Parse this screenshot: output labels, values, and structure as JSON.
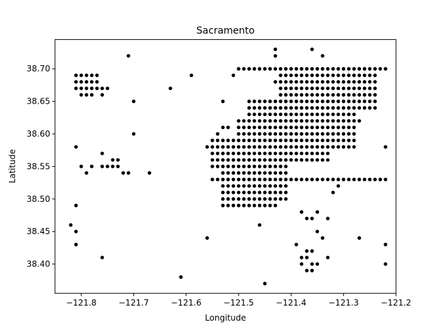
{
  "chart_data": {
    "type": "scatter",
    "title": "Sacramento",
    "xlabel": "Longitude",
    "ylabel": "Latitude",
    "xlim": [
      -121.85,
      -121.2
    ],
    "ylim": [
      38.355,
      38.745
    ],
    "xticks": [
      -121.8,
      -121.7,
      -121.6,
      -121.5,
      -121.4,
      -121.3,
      -121.2
    ],
    "xtick_labels": [
      "−121.8",
      "−121.7",
      "−121.6",
      "−121.5",
      "−121.4",
      "−121.3",
      "−121.2"
    ],
    "yticks": [
      38.4,
      38.45,
      38.5,
      38.55,
      38.6,
      38.65,
      38.7
    ],
    "ytick_labels": [
      "38.40",
      "38.45",
      "38.50",
      "38.55",
      "38.60",
      "38.65",
      "38.70"
    ],
    "grid": false,
    "marker_color": "#000000",
    "x": [
      -121.81,
      -121.8,
      -121.79,
      -121.78,
      -121.77,
      -121.81,
      -121.8,
      -121.79,
      -121.78,
      -121.77,
      -121.81,
      -121.8,
      -121.79,
      -121.78,
      -121.77,
      -121.76,
      -121.75,
      -121.8,
      -121.79,
      -121.78,
      -121.76,
      -121.71,
      -121.7,
      -121.63,
      -121.59,
      -121.7,
      -121.81,
      -121.76,
      -121.76,
      -121.75,
      -121.74,
      -121.73,
      -121.72,
      -121.73,
      -121.74,
      -121.8,
      -121.78,
      -121.79,
      -121.71,
      -121.67,
      -121.81,
      -121.82,
      -121.81,
      -121.81,
      -121.76,
      -121.61,
      -121.56,
      -121.45,
      -121.39,
      -121.38,
      -121.37,
      -121.36,
      -121.38,
      -121.37,
      -121.36,
      -121.35,
      -121.37,
      -121.36,
      -121.35,
      -121.34,
      -121.37,
      -121.36,
      -121.33,
      -121.32,
      -121.31,
      -121.27,
      -121.22,
      -121.22,
      -121.43,
      -121.36,
      -121.34,
      -121.43,
      -121.52,
      -121.51,
      -121.46,
      -121.38,
      -121.35,
      -121.33,
      -121.31,
      -121.27,
      -121.22,
      -121.56,
      -121.55,
      -121.54,
      -121.53,
      -121.5,
      -121.49,
      -121.48,
      -121.47,
      -121.46,
      -121.45,
      -121.44,
      -121.43,
      -121.42,
      -121.41,
      -121.4,
      -121.39,
      -121.38,
      -121.37,
      -121.36,
      -121.35,
      -121.34,
      -121.33,
      -121.32,
      -121.31,
      -121.3,
      -121.29,
      -121.28,
      -121.27,
      -121.26,
      -121.25,
      -121.24,
      -121.23,
      -121.22,
      -121.53,
      -121.43,
      -121.41,
      -121.35,
      -121.32,
      -121.31,
      -121.3,
      -121.29,
      -121.27,
      -121.55,
      -121.54,
      -121.53,
      -121.52,
      -121.51,
      -121.5,
      -121.49,
      -121.48,
      -121.47,
      -121.46,
      -121.45,
      -121.44,
      -121.43,
      -121.42,
      -121.41,
      -121.4,
      -121.39,
      -121.38,
      -121.37,
      -121.36,
      -121.35,
      -121.34,
      -121.33,
      -121.32,
      -121.31,
      -121.3,
      -121.29,
      -121.28,
      -121.26,
      -121.25,
      -121.24,
      -121.23,
      -121.22
    ],
    "y": [
      38.69,
      38.69,
      38.69,
      38.69,
      38.69,
      38.68,
      38.68,
      38.68,
      38.68,
      38.68,
      38.67,
      38.67,
      38.67,
      38.67,
      38.67,
      38.67,
      38.67,
      38.66,
      38.66,
      38.66,
      38.66,
      38.72,
      38.65,
      38.67,
      38.69,
      38.6,
      38.58,
      38.57,
      38.55,
      38.55,
      38.55,
      38.55,
      38.54,
      38.56,
      38.56,
      38.55,
      38.55,
      38.54,
      38.54,
      38.54,
      38.49,
      38.46,
      38.45,
      38.43,
      38.41,
      38.38,
      38.44,
      38.37,
      38.43,
      38.41,
      38.41,
      38.4,
      38.4,
      38.39,
      38.39,
      38.4,
      38.42,
      38.42,
      38.45,
      38.44,
      38.47,
      38.47,
      38.41,
      38.51,
      38.53,
      38.44,
      38.43,
      38.4,
      38.73,
      38.73,
      38.72,
      38.72,
      38.61,
      38.69,
      38.46,
      38.48,
      38.48,
      38.47,
      38.52,
      38.53,
      38.58,
      38.58,
      38.56,
      38.6,
      38.61,
      38.7,
      38.7,
      38.7,
      38.7,
      38.7,
      38.7,
      38.7,
      38.7,
      38.7,
      38.7,
      38.7,
      38.7,
      38.7,
      38.7,
      38.7,
      38.7,
      38.7,
      38.7,
      38.7,
      38.7,
      38.7,
      38.7,
      38.7,
      38.7,
      38.7,
      38.7,
      38.7,
      38.7,
      38.7,
      38.65,
      38.68,
      38.66,
      38.66,
      38.64,
      38.63,
      38.63,
      38.63,
      38.62,
      38.53,
      38.53,
      38.53,
      38.53,
      38.53,
      38.53,
      38.53,
      38.53,
      38.53,
      38.53,
      38.53,
      38.53,
      38.53,
      38.53,
      38.53,
      38.53,
      38.53,
      38.53,
      38.53,
      38.53,
      38.53,
      38.53,
      38.53,
      38.53,
      38.53,
      38.53,
      38.53,
      38.53,
      38.53,
      38.53,
      38.53,
      38.53,
      38.53
    ],
    "marker_size_note": ""
  }
}
